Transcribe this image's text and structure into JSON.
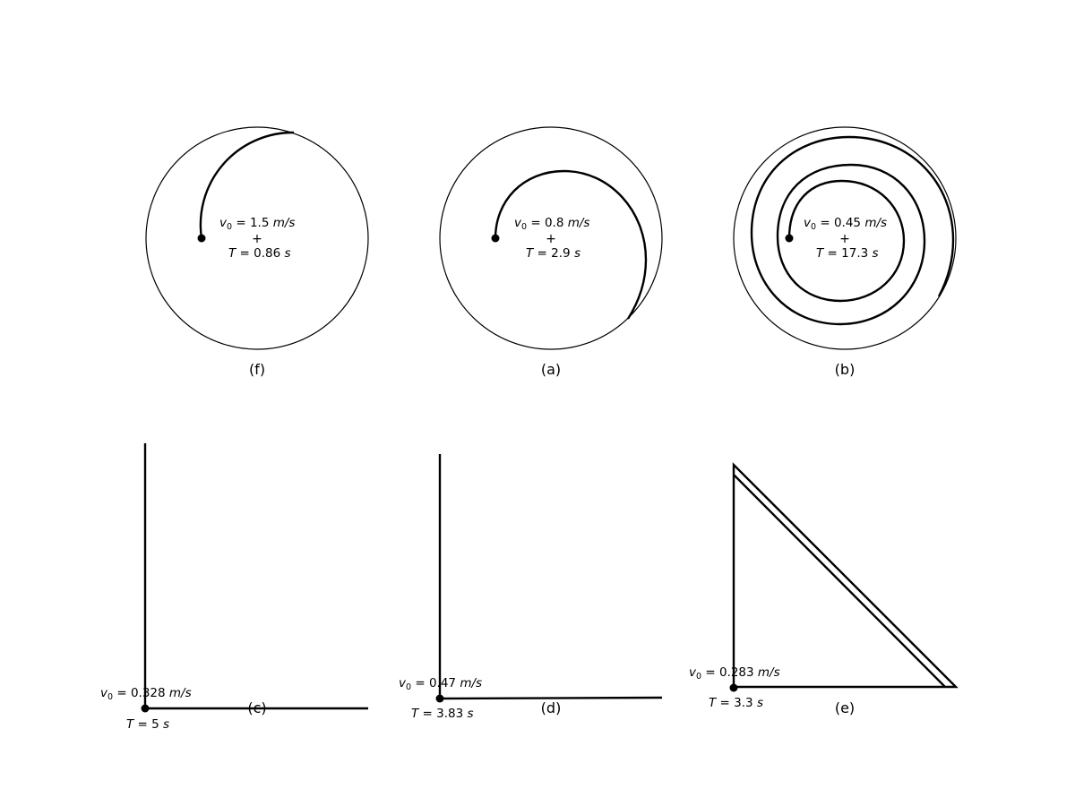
{
  "panels": {
    "f": {
      "label": "(f)",
      "v0": "1.5",
      "T": "0.86",
      "plus": "+"
    },
    "a": {
      "label": "(a)",
      "v0": "0.8",
      "T": "2.9",
      "plus": "+"
    },
    "b": {
      "label": "(b)",
      "v0": "0.45",
      "T": "17.3",
      "plus": "+"
    },
    "c": {
      "label": "(c)",
      "v0": "0.328",
      "T": "5"
    },
    "d": {
      "label": "(d)",
      "v0": "0.47",
      "T": "3.83"
    },
    "e": {
      "label": "(e)",
      "v0": "0.283",
      "T": "3.3"
    }
  },
  "symbols": {
    "v": "v",
    "sub0": "0",
    "eq": " = ",
    "v_unit": "m/s",
    "T": "T",
    "T_unit": "s"
  }
}
